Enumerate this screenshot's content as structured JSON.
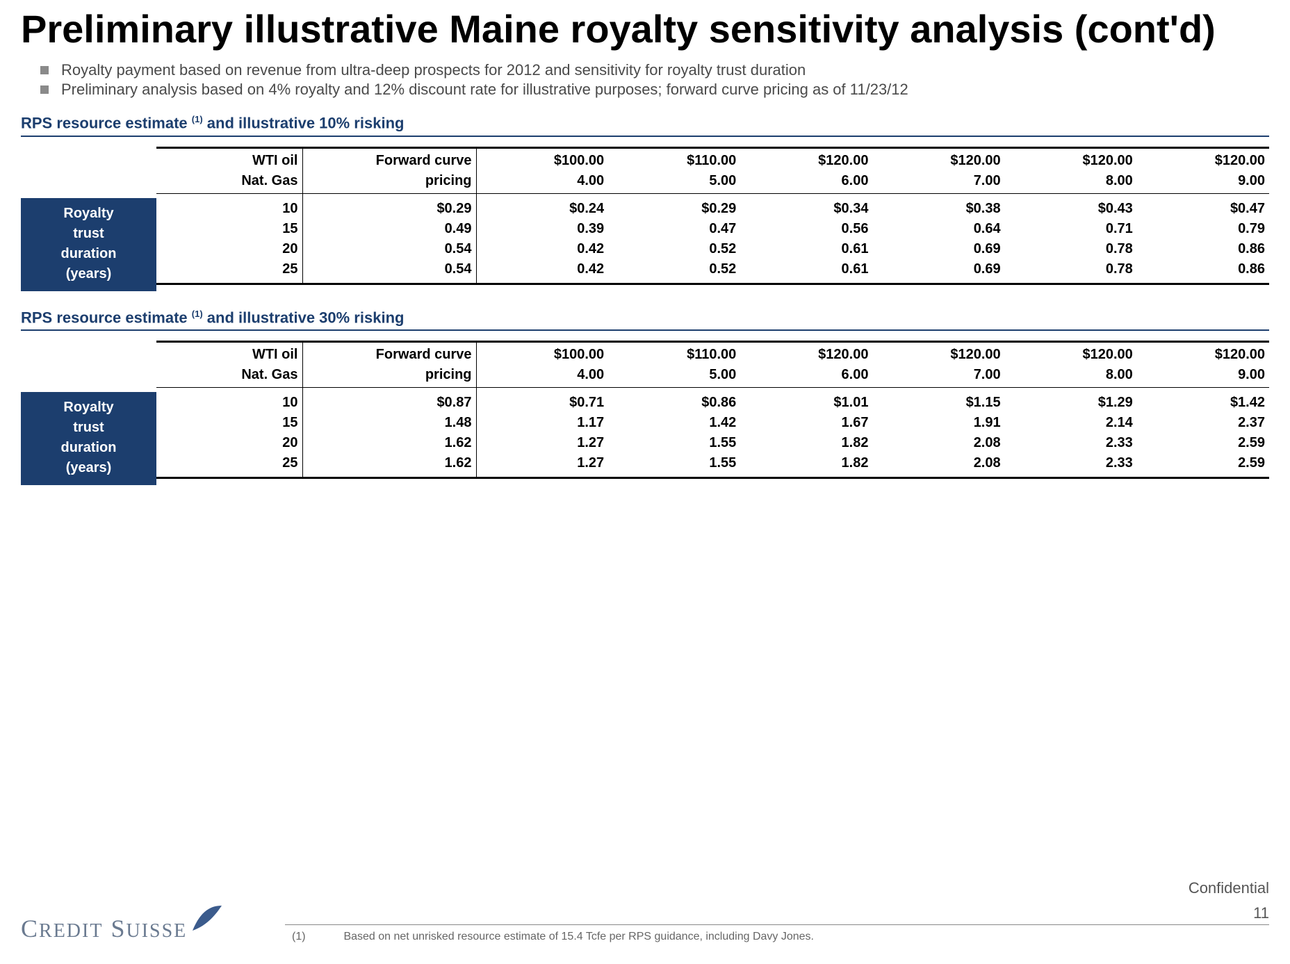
{
  "title": "Preliminary illustrative Maine royalty sensitivity analysis (cont'd)",
  "bullets": [
    "Royalty payment based on revenue from ultra-deep prospects for 2012 and sensitivity for royalty trust duration",
    "Preliminary analysis based on 4% royalty and 12% discount rate for illustrative purposes; forward curve pricing as of 11/23/12"
  ],
  "colors": {
    "brand_navy": "#1c3e6e",
    "bullet_grey": "#8a8a8a",
    "text_grey": "#4a4a4a",
    "footer_grey": "#666666",
    "logo_grey": "#6a7a90"
  },
  "header_keys": {
    "oil": "WTI oil",
    "gas": "Nat. Gas",
    "fwd_top": "Forward curve",
    "fwd_bot": "pricing"
  },
  "price_header": {
    "oil": [
      "$100.00",
      "$110.00",
      "$120.00",
      "$120.00",
      "$120.00",
      "$120.00"
    ],
    "gas": [
      "4.00",
      "5.00",
      "6.00",
      "7.00",
      "8.00",
      "9.00"
    ]
  },
  "row_label_lines": [
    "Royalty",
    "trust",
    "duration",
    "(years)"
  ],
  "sections": [
    {
      "title_html": "RPS resource estimate <sup>(1)</sup> and illustrative 10% risking",
      "row_keys": [
        "10",
        "15",
        "20",
        "25"
      ],
      "fwd": [
        "$0.29",
        "0.49",
        "0.54",
        "0.54"
      ],
      "grid": [
        [
          "$0.24",
          "$0.29",
          "$0.34",
          "$0.38",
          "$0.43",
          "$0.47"
        ],
        [
          "0.39",
          "0.47",
          "0.56",
          "0.64",
          "0.71",
          "0.79"
        ],
        [
          "0.42",
          "0.52",
          "0.61",
          "0.69",
          "0.78",
          "0.86"
        ],
        [
          "0.42",
          "0.52",
          "0.61",
          "0.69",
          "0.78",
          "0.86"
        ]
      ]
    },
    {
      "title_html": "RPS resource estimate <sup>(1)</sup> and illustrative 30% risking",
      "row_keys": [
        "10",
        "15",
        "20",
        "25"
      ],
      "fwd": [
        "$0.87",
        "1.48",
        "1.62",
        "1.62"
      ],
      "grid": [
        [
          "$0.71",
          "$0.86",
          "$1.01",
          "$1.15",
          "$1.29",
          "$1.42"
        ],
        [
          "1.17",
          "1.42",
          "1.67",
          "1.91",
          "2.14",
          "2.37"
        ],
        [
          "1.27",
          "1.55",
          "1.82",
          "2.08",
          "2.33",
          "2.59"
        ],
        [
          "1.27",
          "1.55",
          "1.82",
          "2.08",
          "2.33",
          "2.59"
        ]
      ]
    }
  ],
  "footnote": {
    "num": "(1)",
    "text": "Based on net unrisked resource estimate of 15.4 Tcfe per RPS guidance, including Davy Jones."
  },
  "confidential": "Confidential",
  "page_number": "11",
  "logo_text": "CREDIT SUISSE"
}
